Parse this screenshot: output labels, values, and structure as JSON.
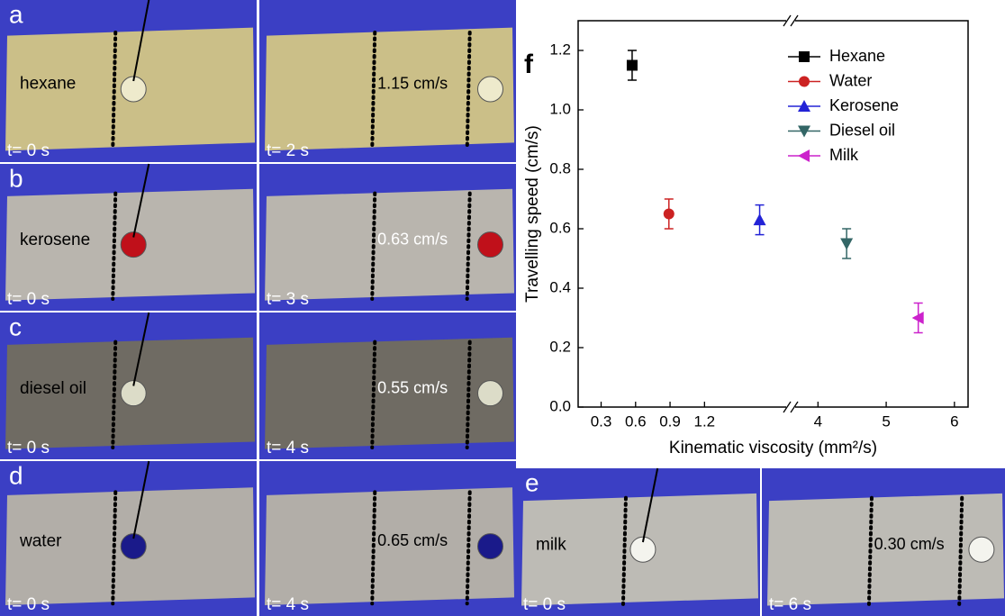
{
  "photos": [
    {
      "letter": "a",
      "substance": "hexane",
      "speed": "1.15 cm/s",
      "times": [
        "t= 0 s",
        "t= 2 s"
      ]
    },
    {
      "letter": "b",
      "substance": "kerosene",
      "speed": "0.63 cm/s",
      "times": [
        "t= 0 s",
        "t= 3 s"
      ]
    },
    {
      "letter": "c",
      "substance": "diesel oil",
      "speed": "0.55 cm/s",
      "times": [
        "t= 0 s",
        "t= 4 s"
      ]
    },
    {
      "letter": "d",
      "substance": "water",
      "speed": "0.65 cm/s",
      "times": [
        "t= 0 s",
        "t= 4 s"
      ]
    },
    {
      "letter": "e",
      "substance": "milk",
      "speed": "0.30 cm/s",
      "times": [
        "t= 0 s",
        "t= 6 s"
      ]
    }
  ],
  "chart_data": {
    "type": "scatter",
    "panel_letter": "f",
    "x_label": "Kinematic viscosity (mm²/s)",
    "y_label": "Travelling speed (cm/s)",
    "x_segments": [
      {
        "xlim": [
          0.1,
          1.95
        ],
        "xticks": [
          0.3,
          0.6,
          0.9,
          1.2
        ]
      },
      {
        "xlim": [
          3.6,
          6.2
        ],
        "xticks": [
          4,
          5,
          6
        ]
      }
    ],
    "ylim": [
      0,
      1.3
    ],
    "yticks": [
      {
        "value": 0,
        "label": "0.0"
      },
      0.2,
      0.4,
      0.6,
      0.8,
      {
        "value": 1,
        "label": "1.0"
      },
      1.2
    ],
    "legend": "top-right",
    "series": [
      {
        "name": "Hexane",
        "color": "#000000",
        "marker": "square",
        "x": [
          0.57
        ],
        "values": [
          1.15
        ],
        "errors": [
          0.05
        ]
      },
      {
        "name": "Water",
        "color": "#cc2222",
        "marker": "circle",
        "x": [
          0.89
        ],
        "values": [
          0.65
        ],
        "errors": [
          0.05
        ]
      },
      {
        "name": "Kerosene",
        "color": "#2323d6",
        "marker": "triangle-up",
        "x": [
          1.68
        ],
        "values": [
          0.63
        ],
        "errors": [
          0.05
        ]
      },
      {
        "name": "Diesel oil",
        "color": "#336666",
        "marker": "triangle-down",
        "x": [
          4.42
        ],
        "values": [
          0.55
        ],
        "errors": [
          0.05
        ]
      },
      {
        "name": "Milk",
        "color": "#cc22cc",
        "marker": "triangle-left",
        "x": [
          5.47
        ],
        "values": [
          0.3
        ],
        "errors": [
          0.05
        ]
      }
    ]
  }
}
